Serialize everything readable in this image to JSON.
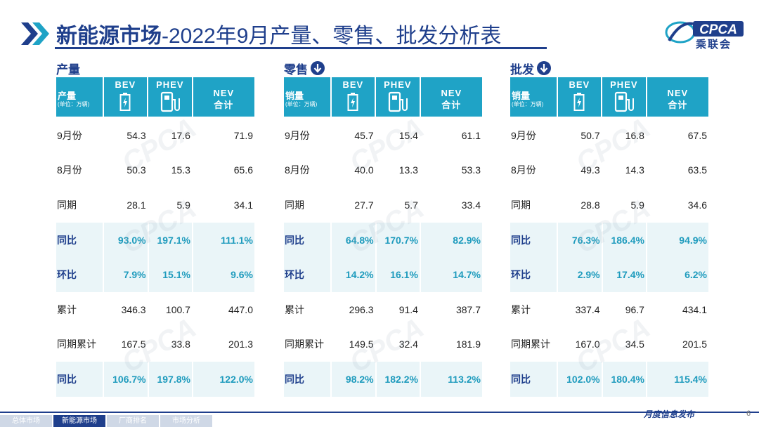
{
  "page": {
    "title_main": "新能源市场",
    "title_sub": "-2022年9月产量、零售、批发分析表",
    "logo_text": "CPCA",
    "logo_cn": "乘联会",
    "colors": {
      "header": "#1fa3c6",
      "navy": "#1f3f8c",
      "accent": "#1e9bbd",
      "highlight_row": "#eaf5f8"
    }
  },
  "panels": [
    {
      "heading": "产量",
      "heading_icon": "",
      "row_header_label": "产量",
      "row_header_unit": "(单位：万辆)",
      "col_bev": "BEV",
      "col_phev": "PHEV",
      "col_nev_1": "NEV",
      "col_nev_2": "合计",
      "rows": [
        {
          "label": "9月份",
          "bev": "54.3",
          "phev": "17.6",
          "nev": "71.9",
          "hl": false
        },
        {
          "label": "8月份",
          "bev": "50.3",
          "phev": "15.3",
          "nev": "65.6",
          "hl": false
        },
        {
          "label": "同期",
          "bev": "28.1",
          "phev": "5.9",
          "nev": "34.1",
          "hl": false
        },
        {
          "label": "同比",
          "bev": "93.0%",
          "phev": "197.1%",
          "nev": "111.1%",
          "hl": true
        },
        {
          "label": "环比",
          "bev": "7.9%",
          "phev": "15.1%",
          "nev": "9.6%",
          "hl": true
        },
        {
          "label": "累计",
          "bev": "346.3",
          "phev": "100.7",
          "nev": "447.0",
          "hl": false
        },
        {
          "label": "同期累计",
          "bev": "167.5",
          "phev": "33.8",
          "nev": "201.3",
          "hl": false
        },
        {
          "label": "同比",
          "bev": "106.7%",
          "phev": "197.8%",
          "nev": "122.0%",
          "hl": true
        }
      ]
    },
    {
      "heading": "零售",
      "heading_icon": "down-arrow-icon",
      "row_header_label": "销量",
      "row_header_unit": "(单位：万辆)",
      "col_bev": "BEV",
      "col_phev": "PHEV",
      "col_nev_1": "NEV",
      "col_nev_2": "合计",
      "rows": [
        {
          "label": "9月份",
          "bev": "45.7",
          "phev": "15.4",
          "nev": "61.1",
          "hl": false
        },
        {
          "label": "8月份",
          "bev": "40.0",
          "phev": "13.3",
          "nev": "53.3",
          "hl": false
        },
        {
          "label": "同期",
          "bev": "27.7",
          "phev": "5.7",
          "nev": "33.4",
          "hl": false
        },
        {
          "label": "同比",
          "bev": "64.8%",
          "phev": "170.7%",
          "nev": "82.9%",
          "hl": true
        },
        {
          "label": "环比",
          "bev": "14.2%",
          "phev": "16.1%",
          "nev": "14.7%",
          "hl": true
        },
        {
          "label": "累计",
          "bev": "296.3",
          "phev": "91.4",
          "nev": "387.7",
          "hl": false
        },
        {
          "label": "同期累计",
          "bev": "149.5",
          "phev": "32.4",
          "nev": "181.9",
          "hl": false
        },
        {
          "label": "同比",
          "bev": "98.2%",
          "phev": "182.2%",
          "nev": "113.2%",
          "hl": true
        }
      ]
    },
    {
      "heading": "批发",
      "heading_icon": "down-arrow-icon",
      "row_header_label": "销量",
      "row_header_unit": "(单位：万辆)",
      "col_bev": "BEV",
      "col_phev": "PHEV",
      "col_nev_1": "NEV",
      "col_nev_2": "合计",
      "rows": [
        {
          "label": "9月份",
          "bev": "50.7",
          "phev": "16.8",
          "nev": "67.5",
          "hl": false
        },
        {
          "label": "8月份",
          "bev": "49.3",
          "phev": "14.3",
          "nev": "63.5",
          "hl": false
        },
        {
          "label": "同期",
          "bev": "28.8",
          "phev": "5.9",
          "nev": "34.6",
          "hl": false
        },
        {
          "label": "同比",
          "bev": "76.3%",
          "phev": "186.4%",
          "nev": "94.9%",
          "hl": true
        },
        {
          "label": "环比",
          "bev": "2.9%",
          "phev": "17.4%",
          "nev": "6.2%",
          "hl": true
        },
        {
          "label": "累计",
          "bev": "337.4",
          "phev": "96.7",
          "nev": "434.1",
          "hl": false
        },
        {
          "label": "同期累计",
          "bev": "167.0",
          "phev": "34.5",
          "nev": "201.5",
          "hl": false
        },
        {
          "label": "同比",
          "bev": "102.0%",
          "phev": "180.4%",
          "nev": "115.4%",
          "hl": true
        }
      ]
    }
  ],
  "footer": {
    "tabs": [
      {
        "label": "总体市场",
        "active": false
      },
      {
        "label": "新能源市场",
        "active": true
      },
      {
        "label": "厂商排名",
        "active": false
      },
      {
        "label": "市场分析",
        "active": false
      }
    ],
    "right_text": "月度信息发布",
    "page_number": "6"
  }
}
